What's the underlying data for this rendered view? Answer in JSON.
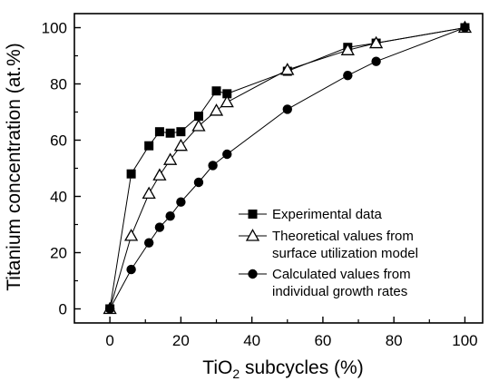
{
  "chart_data": {
    "type": "scatter",
    "xlabel_main": "TiO",
    "xlabel_sub": "2",
    "xlabel_rest": " subcycles (%)",
    "ylabel": "Titanium concentration (at.%)",
    "xlim": [
      -10,
      105
    ],
    "ylim": [
      -5,
      105
    ],
    "xticks": [
      0,
      20,
      40,
      60,
      80,
      100
    ],
    "yticks": [
      0,
      20,
      40,
      60,
      80,
      100
    ],
    "legend_position": "bottom-right",
    "series": [
      {
        "name": "Experimental data",
        "marker": "filled-square",
        "x": [
          0,
          6,
          11,
          14,
          17,
          20,
          25,
          30,
          33,
          50,
          67,
          75,
          100
        ],
        "y": [
          0,
          48,
          58,
          63,
          62.5,
          63,
          68.5,
          77.5,
          76.5,
          84.5,
          93,
          94.5,
          100
        ]
      },
      {
        "name": "Theoretical values from",
        "name_line2": "surface utilization model",
        "marker": "open-triangle",
        "x": [
          0,
          6,
          11,
          14,
          17,
          20,
          25,
          30,
          33,
          50,
          67,
          75,
          100
        ],
        "y": [
          0,
          26,
          41,
          47.5,
          53,
          58,
          65,
          70.5,
          73.5,
          85,
          92,
          94.5,
          100
        ]
      },
      {
        "name": "Calculated values from",
        "name_line2": "individual growth rates",
        "marker": "filled-circle",
        "x": [
          0,
          6,
          11,
          14,
          17,
          20,
          25,
          29,
          33,
          50,
          67,
          75,
          100
        ],
        "y": [
          0,
          14,
          23.5,
          29,
          33,
          38,
          45,
          51,
          55,
          71,
          83,
          88,
          100
        ]
      }
    ]
  }
}
